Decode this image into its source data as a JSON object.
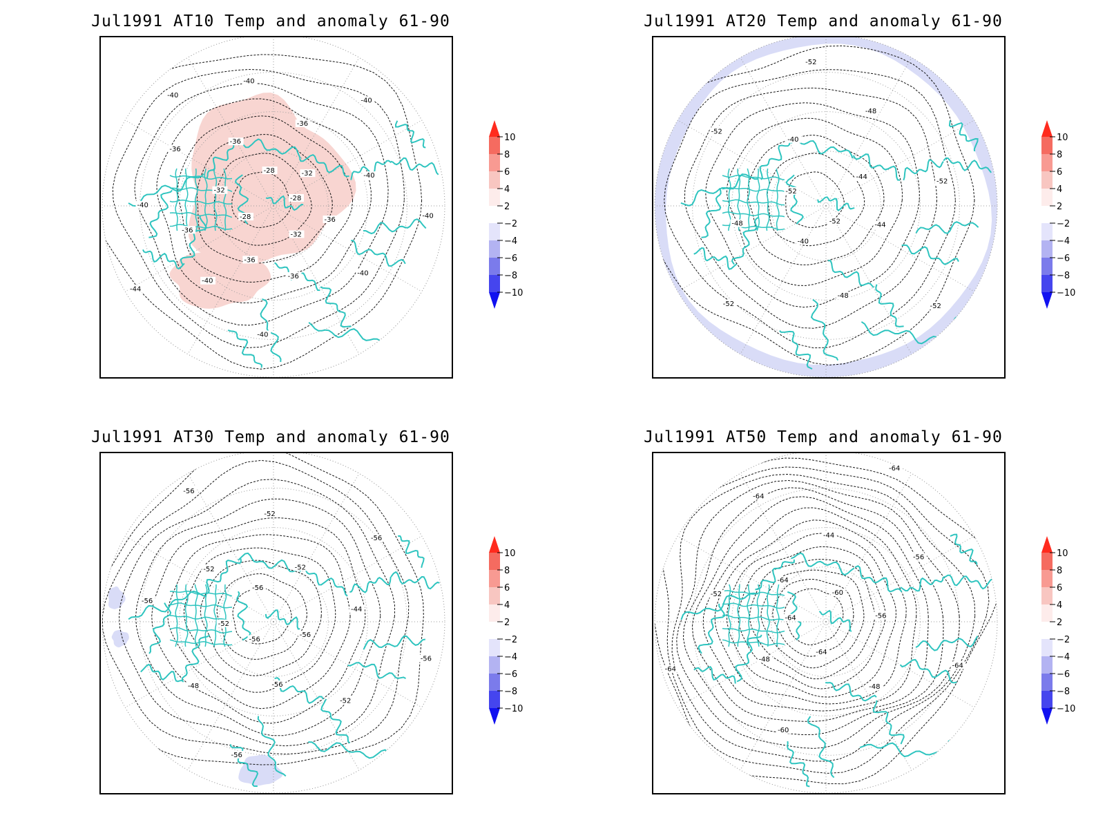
{
  "colors": {
    "coast": "#2ec4bf",
    "contour": "#111111",
    "graticule": "#9a9a9a",
    "warm_fill": "#f8d5d1",
    "cool_fill": "#d9dcf7"
  },
  "colorbar": {
    "labels": [
      "10",
      "8",
      "6",
      "4",
      "2",
      "−2",
      "−4",
      "−6",
      "−8",
      "−10"
    ],
    "colors": [
      "#ff2b1e",
      "#f56b60",
      "#f89a92",
      "#f8c6c1",
      "#fdeceb",
      "#ffffff",
      "#e4e4fb",
      "#b3b3f2",
      "#7b7beb",
      "#4545ee",
      "#1111f0"
    ]
  },
  "panels": [
    {
      "title": "Jul1991 AT10 Temp and anomaly 61-90",
      "contour_labels": [
        "-28",
        "-28",
        "-28",
        "-32",
        "-32",
        "-32",
        "-36",
        "-36",
        "-36",
        "-36",
        "-36",
        "-36",
        "-36",
        "-40",
        "-40",
        "-40",
        "-40",
        "-40",
        "-40",
        "-40",
        "-40",
        "-40",
        "-44"
      ],
      "anomaly_regions": [
        "warm"
      ]
    },
    {
      "title": "Jul1991 AT20 Temp and anomaly 61-90",
      "contour_labels": [
        "-52",
        "-52",
        "-44",
        "-40",
        "-40",
        "-44",
        "-48",
        "-48",
        "-48",
        "-52",
        "-52",
        "-52",
        "-52",
        "-52"
      ],
      "anomaly_regions": [
        "cool"
      ]
    },
    {
      "title": "Jul1991 AT30 Temp and anomaly 61-90",
      "contour_labels": [
        "-56",
        "-56",
        "-56",
        "-52",
        "-52",
        "-56",
        "-52",
        "-44",
        "-48",
        "-52",
        "-52",
        "-56",
        "-56",
        "-56",
        "-56",
        "-56"
      ],
      "anomaly_regions": [
        "cool"
      ]
    },
    {
      "title": "Jul1991 AT50 Temp and anomaly 61-90",
      "contour_labels": [
        "-64",
        "-60",
        "-64",
        "-64",
        "-56",
        "-48",
        "-44",
        "-48",
        "-52",
        "-56",
        "-60",
        "-64",
        "-64",
        "-64",
        "-64"
      ],
      "anomaly_regions": []
    }
  ]
}
